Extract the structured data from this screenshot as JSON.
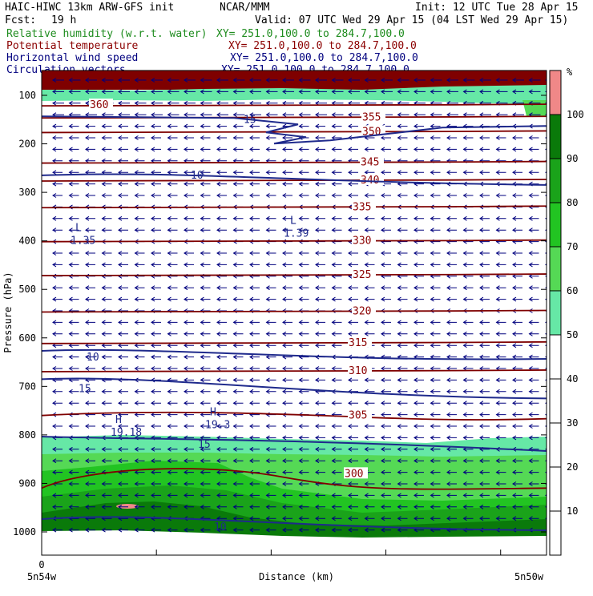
{
  "header": {
    "model": "HAIC-HIWC 13km ARW-GFS init",
    "org": "NCAR/MMM",
    "init": "Init: 12 UTC Tue 28 Apr 15",
    "fcst_label": "Fcst:",
    "fcst_value": "19 h",
    "valid": "Valid: 07 UTC Wed 29 Apr 15 (04 LST Wed 29 Apr 15)"
  },
  "fields": [
    {
      "name": "Relative humidity (w.r.t. water)",
      "xy": "XY= 251.0,100.0 to 284.7,100.0",
      "color": "#1e8c1e"
    },
    {
      "name": "Potential temperature",
      "xy": "XY= 251.0,100.0 to 284.7,100.0",
      "color": "#8b0000"
    },
    {
      "name": "Horizontal wind speed",
      "xy": "XY= 251.0,100.0 to 284.7,100.0",
      "color": "#00007f"
    },
    {
      "name": "Circulation vectors",
      "xy": "XY= 251.0,100.0 to 284.7,100.0",
      "color": "#00007f"
    }
  ],
  "chart_data": {
    "type": "heatmap",
    "ylabel": "Pressure (hPa)",
    "xlabel": "Distance (km)",
    "y_ticks": [
      100,
      200,
      300,
      400,
      500,
      600,
      700,
      800,
      900,
      1000
    ],
    "x_tick_label": "0",
    "x_left_label": "5n54w",
    "x_right_label": "5n50w",
    "colorbar": {
      "unit": "%",
      "labels": [
        10,
        20,
        30,
        40,
        50,
        60,
        70,
        80,
        90,
        100
      ],
      "bins": [
        {
          "range": [
            0,
            50
          ],
          "color": "#ffffff"
        },
        {
          "range": [
            50,
            60
          ],
          "color": "#66e8a6"
        },
        {
          "range": [
            60,
            70
          ],
          "color": "#55d955"
        },
        {
          "range": [
            70,
            80
          ],
          "color": "#22c422"
        },
        {
          "range": [
            80,
            90
          ],
          "color": "#1aa31a"
        },
        {
          "range": [
            90,
            100
          ],
          "color": "#0a7a0a"
        },
        {
          "range": [
            100,
            110
          ],
          "color": "#f08888"
        }
      ]
    },
    "theta_contours": [
      {
        "label": "360",
        "pressure": 120
      },
      {
        "label": "355",
        "pressure": 145
      },
      {
        "label": "350",
        "pressure": 175
      },
      {
        "label": "345",
        "pressure": 238
      },
      {
        "label": "340",
        "pressure": 275
      },
      {
        "label": "335",
        "pressure": 330
      },
      {
        "label": "330",
        "pressure": 400
      },
      {
        "label": "325",
        "pressure": 470
      },
      {
        "label": "320",
        "pressure": 545
      },
      {
        "label": "315",
        "pressure": 610
      },
      {
        "label": "310",
        "pressure": 668
      },
      {
        "label": "305",
        "pressure": 760
      },
      {
        "label": "300",
        "pressure": 880
      }
    ],
    "wind_contours": [
      {
        "label": "15",
        "pressure": 150
      },
      {
        "label": "10",
        "pressure": 265
      },
      {
        "label": "10",
        "pressure": 640
      },
      {
        "label": "15",
        "pressure": 705
      },
      {
        "label": "15",
        "pressure": 820
      },
      {
        "label": "10",
        "pressure": 990
      }
    ],
    "extrema": [
      {
        "type": "L",
        "value": "1.35",
        "pressure": 390
      },
      {
        "type": "L",
        "value": "1.39",
        "pressure": 375
      },
      {
        "type": "H",
        "value": "19.18",
        "pressure": 785
      },
      {
        "type": "H",
        "value": "19.3",
        "pressure": 770
      }
    ]
  }
}
